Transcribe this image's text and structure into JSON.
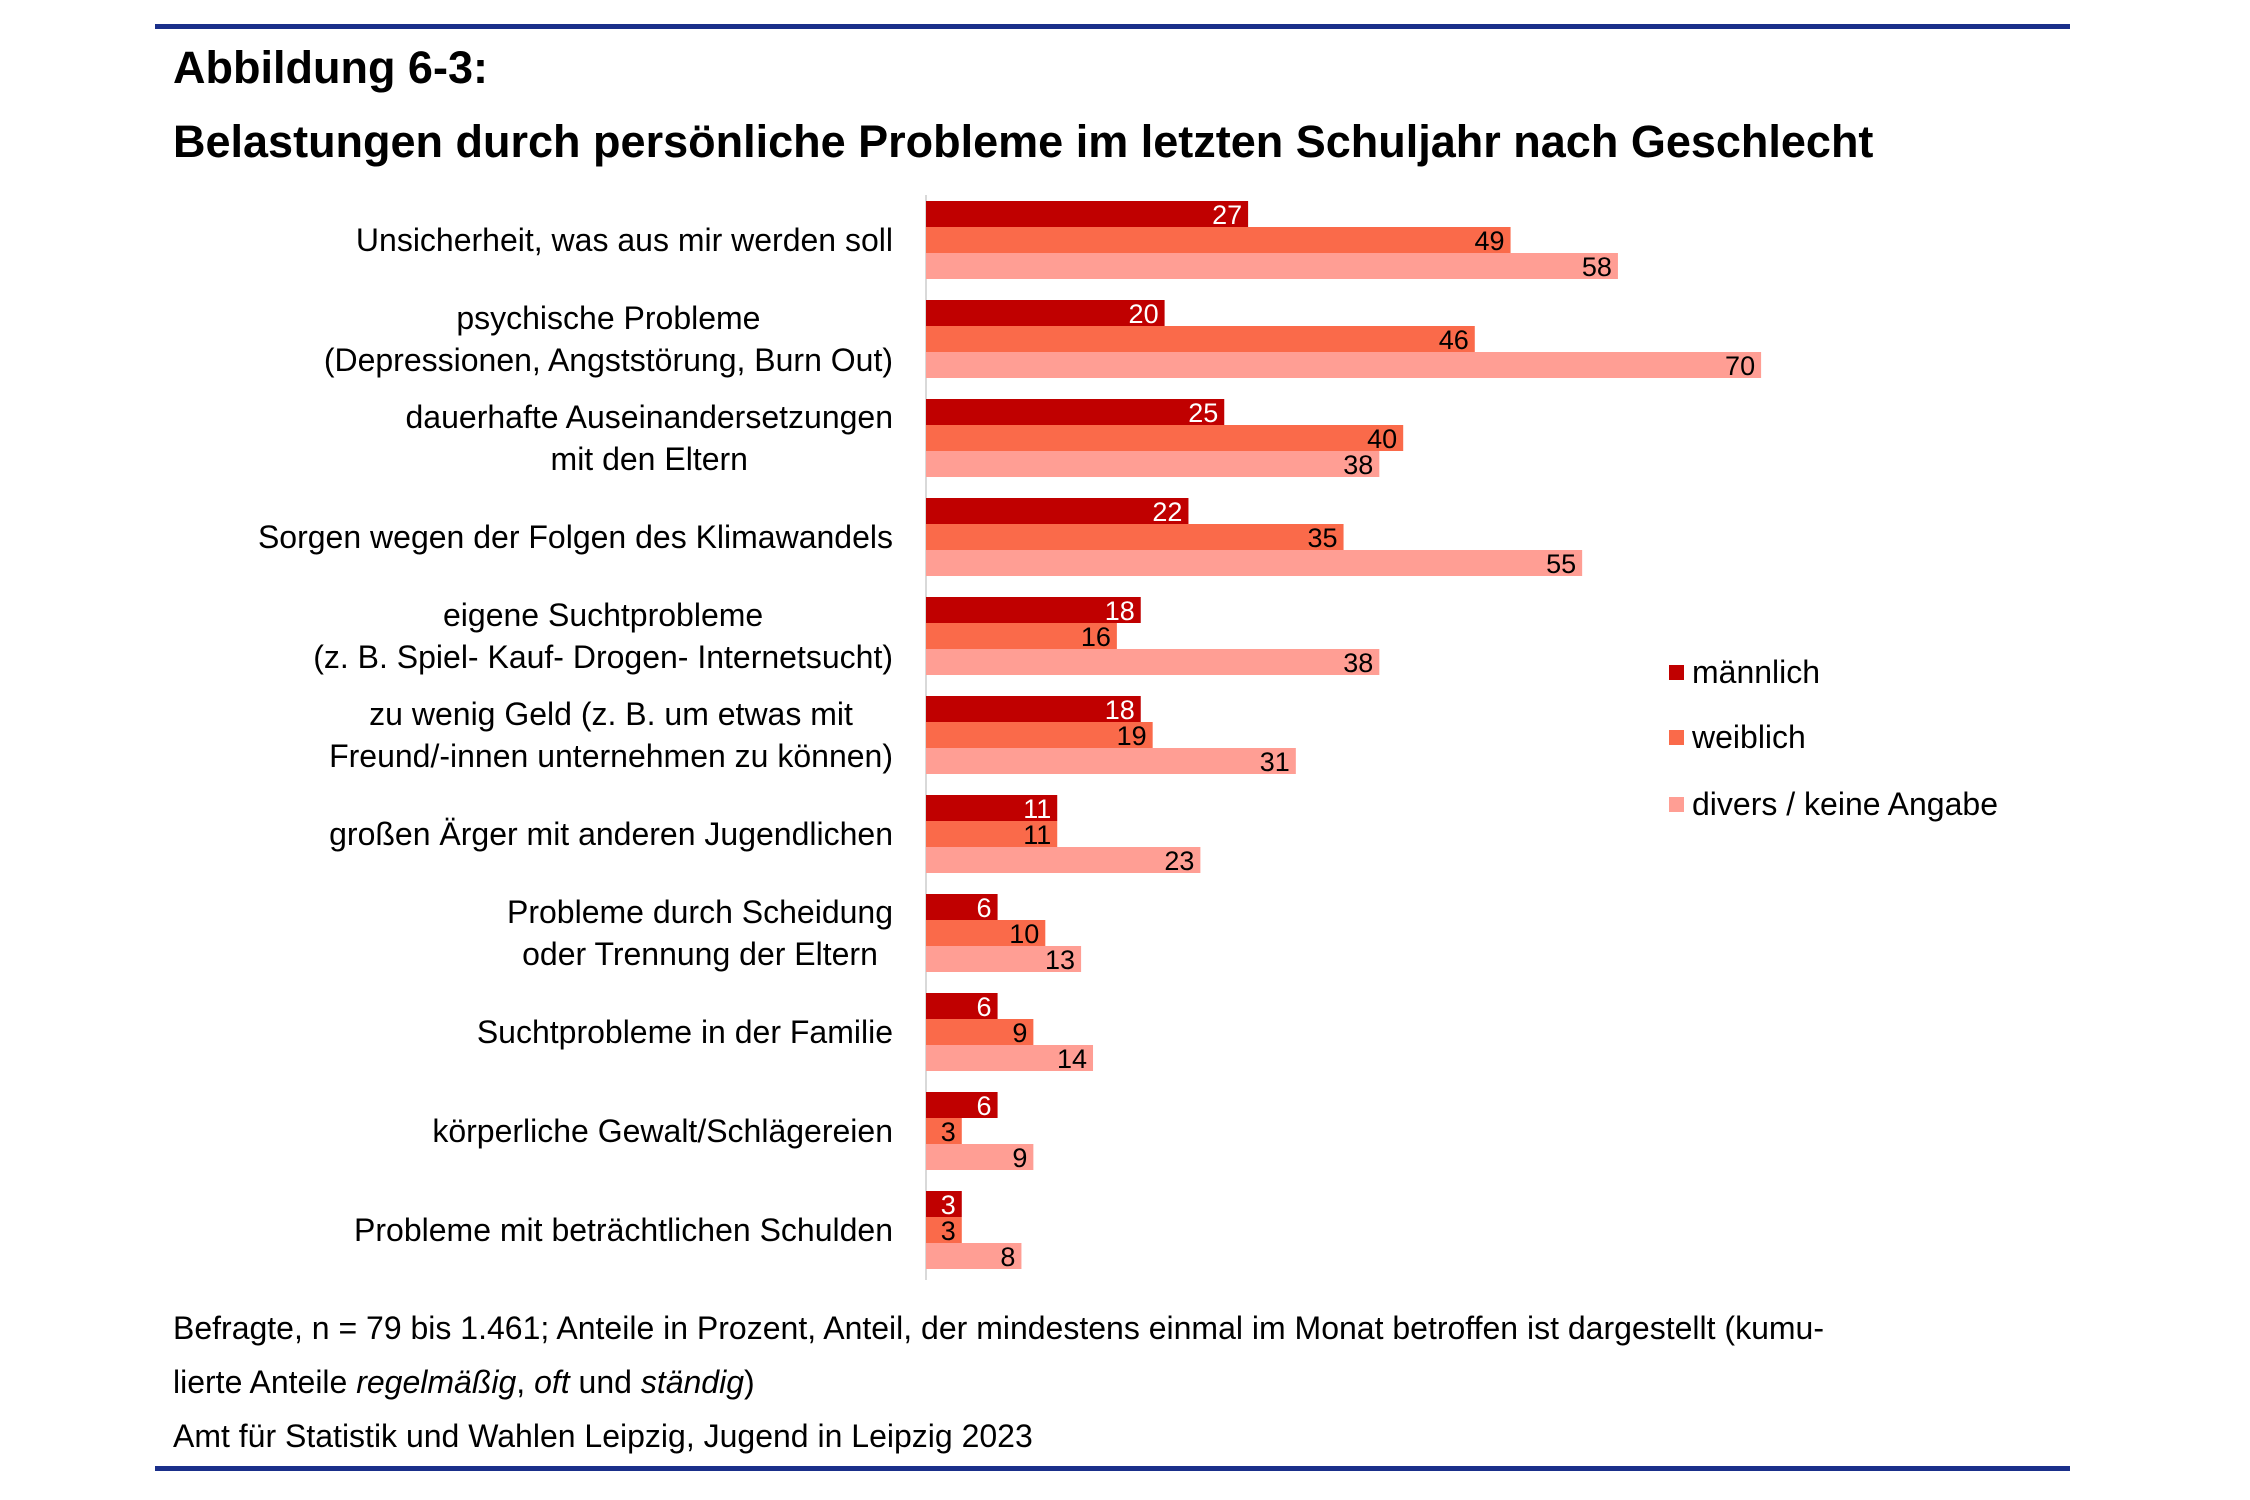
{
  "figure_label": "Abbildung 6-3:",
  "chart_data": {
    "type": "bar",
    "orientation": "horizontal",
    "title": "Belastungen durch persönliche Probleme im letzten Schuljahr nach Geschlecht",
    "xlabel": "",
    "ylabel": "",
    "xlim": [
      0,
      70
    ],
    "grid": false,
    "legend_position": "right",
    "categories": [
      [
        "Unsicherheit, was aus mir werden soll"
      ],
      [
        "psychische Probleme",
        "(Depressionen, Angststörung, Burn Out)"
      ],
      [
        "dauerhafte Auseinandersetzungen",
        "mit den Eltern"
      ],
      [
        "Sorgen wegen der Folgen des Klimawandels"
      ],
      [
        "eigene Suchtprobleme",
        "(z. B. Spiel- Kauf- Drogen- Internetsucht)"
      ],
      [
        "zu wenig Geld (z. B. um etwas mit",
        "Freund/-innen unternehmen zu können)"
      ],
      [
        "großen Ärger mit anderen Jugendlichen"
      ],
      [
        "Probleme durch Scheidung",
        "oder Trennung der Eltern"
      ],
      [
        "Suchtprobleme in der Familie"
      ],
      [
        "körperliche Gewalt/Schlägereien"
      ],
      [
        "Probleme mit beträchtlichen Schulden"
      ]
    ],
    "series": [
      {
        "name": "männlich",
        "color": "#C00000",
        "label_color": "#ffffff",
        "values": [
          27,
          20,
          25,
          22,
          18,
          18,
          11,
          6,
          6,
          6,
          3
        ]
      },
      {
        "name": "weiblich",
        "color": "#FA6A4A",
        "label_color": "#000000",
        "values": [
          49,
          46,
          40,
          35,
          16,
          19,
          11,
          10,
          9,
          3,
          3
        ]
      },
      {
        "name": "divers / keine Angabe",
        "color": "#FF9E94",
        "label_color": "#000000",
        "values": [
          58,
          70,
          38,
          55,
          38,
          31,
          23,
          13,
          14,
          9,
          8
        ]
      }
    ]
  },
  "footnote": {
    "line1": "Befragte, n = 79 bis 1.461; Anteile in Prozent, Anteil, der mindestens einmal im Monat betroffen ist dargestellt (kumu-",
    "line2_prefix": "lierte Anteile ",
    "line2_em1": "regelmäßig",
    "line2_sep1": ", ",
    "line2_em2": "oft",
    "line2_sep2": " und ",
    "line2_em3": "ständig",
    "line2_suffix": ")",
    "source": "Amt für Statistik und Wahlen Leipzig, Jugend in Leipzig 2023"
  }
}
